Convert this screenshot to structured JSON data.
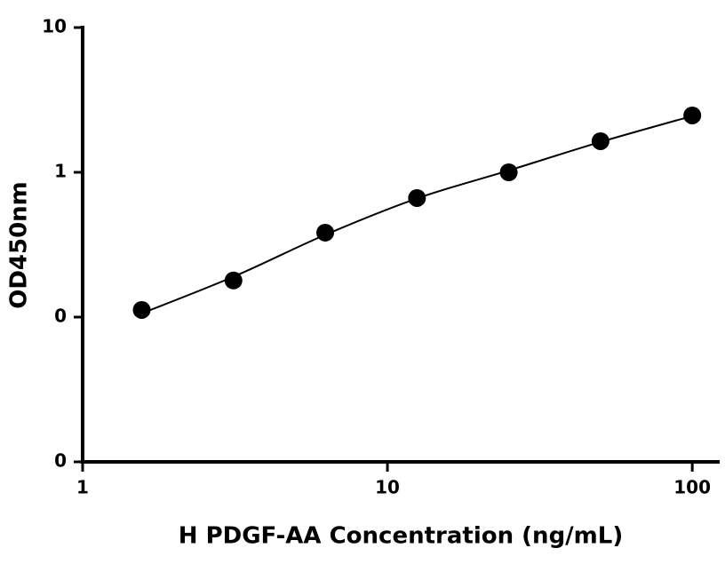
{
  "chart_data": {
    "type": "scatter",
    "x_label": "H PDGF-AA Concentration (ng/mL)",
    "y_label": "OD450nm",
    "x": [
      1.5625,
      3.125,
      6.25,
      12.5,
      25,
      50,
      100
    ],
    "series": [
      {
        "color": "#000000",
        "values": [
          0.112,
          0.179,
          0.383,
          0.664,
          1.0,
          1.64,
          2.47
        ],
        "style": "marker"
      },
      {
        "color": "#000000",
        "values": [
          0.106,
          0.19,
          0.37,
          0.66,
          1.03,
          1.62,
          2.45
        ],
        "style": "line"
      }
    ],
    "xlog": true,
    "ylog": true,
    "xlim": [
      1,
      123
    ],
    "ylim": [
      0.01,
      10
    ],
    "xticks": [
      1,
      10,
      100
    ],
    "yticks": [
      {
        "value": 0.01,
        "label": "0"
      },
      {
        "value": 0.1,
        "label": "0"
      },
      1,
      10
    ]
  }
}
